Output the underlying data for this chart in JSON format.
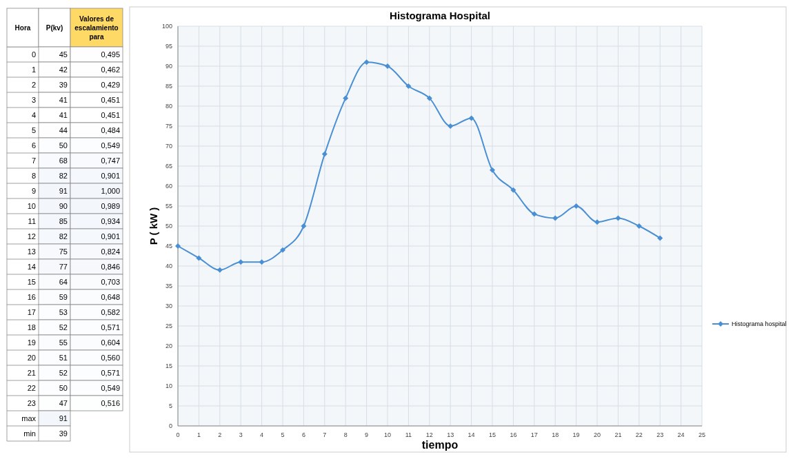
{
  "chart_data": [
    {
      "type": "heatmap",
      "ylabel": "Hora",
      "categories": [
        "P(kv)",
        "Valores de escalamiento para"
      ],
      "y_categories": [
        "0",
        "1",
        "2",
        "3",
        "4",
        "5",
        "6",
        "7",
        "8",
        "9",
        "10",
        "11",
        "12",
        "13",
        "14",
        "15",
        "16",
        "17",
        "18",
        "19",
        "20",
        "21",
        "22",
        "23",
        "max",
        "min"
      ],
      "cells": [
        [
          45,
          0.495
        ],
        [
          42,
          0.462
        ],
        [
          39,
          0.429
        ],
        [
          41,
          0.451
        ],
        [
          41,
          0.451
        ],
        [
          44,
          0.484
        ],
        [
          50,
          0.549
        ],
        [
          68,
          0.747
        ],
        [
          82,
          0.901
        ],
        [
          91,
          1.0
        ],
        [
          90,
          0.989
        ],
        [
          85,
          0.934
        ],
        [
          82,
          0.901
        ],
        [
          75,
          0.824
        ],
        [
          77,
          0.846
        ],
        [
          64,
          0.703
        ],
        [
          59,
          0.648
        ],
        [
          53,
          0.582
        ],
        [
          52,
          0.571
        ],
        [
          55,
          0.604
        ],
        [
          51,
          0.56
        ],
        [
          52,
          0.571
        ],
        [
          50,
          0.549
        ],
        [
          47,
          0.516
        ],
        [
          91,
          null
        ],
        [
          39,
          null
        ]
      ],
      "cell_labels": [
        [
          "45",
          "0,495"
        ],
        [
          "42",
          "0,462"
        ],
        [
          "39",
          "0,429"
        ],
        [
          "41",
          "0,451"
        ],
        [
          "41",
          "0,451"
        ],
        [
          "44",
          "0,484"
        ],
        [
          "50",
          "0,549"
        ],
        [
          "68",
          "0,747"
        ],
        [
          "82",
          "0,901"
        ],
        [
          "91",
          "1,000"
        ],
        [
          "90",
          "0,989"
        ],
        [
          "85",
          "0,934"
        ],
        [
          "82",
          "0,901"
        ],
        [
          "75",
          "0,824"
        ],
        [
          "77",
          "0,846"
        ],
        [
          "64",
          "0,703"
        ],
        [
          "59",
          "0,648"
        ],
        [
          "53",
          "0,582"
        ],
        [
          "52",
          "0,571"
        ],
        [
          "55",
          "0,604"
        ],
        [
          "51",
          "0,560"
        ],
        [
          "52",
          "0,571"
        ],
        [
          "50",
          "0,549"
        ],
        [
          "47",
          "0,516"
        ],
        [
          "91",
          null
        ],
        [
          "39",
          null
        ]
      ]
    },
    {
      "type": "line",
      "title": "Histograma Hospital",
      "xlabel": "tiempo",
      "ylabel": "P ( kW )",
      "x": [
        0,
        1,
        2,
        3,
        4,
        5,
        6,
        7,
        8,
        9,
        10,
        11,
        12,
        13,
        14,
        15,
        16,
        17,
        18,
        19,
        20,
        21,
        22,
        23
      ],
      "series": [
        {
          "name": "Histograma hospital",
          "color": "#4a8fd4",
          "values": [
            45,
            42,
            39,
            41,
            41,
            44,
            50,
            68,
            82,
            91,
            90,
            85,
            82,
            75,
            77,
            64,
            59,
            53,
            52,
            55,
            51,
            52,
            50,
            47
          ]
        }
      ],
      "xlim": [
        0,
        25
      ],
      "xticks": [
        0,
        1,
        2,
        3,
        4,
        5,
        6,
        7,
        8,
        9,
        10,
        11,
        12,
        13,
        14,
        15,
        16,
        17,
        18,
        19,
        20,
        21,
        22,
        23,
        24,
        25
      ],
      "ylim": [
        0,
        100
      ],
      "yticks": [
        0,
        5,
        10,
        15,
        20,
        25,
        30,
        35,
        40,
        45,
        50,
        55,
        60,
        65,
        70,
        75,
        80,
        85,
        90,
        95,
        100
      ],
      "grid": true,
      "legend": "right",
      "marker": "diamond",
      "line_style": "solid"
    }
  ]
}
